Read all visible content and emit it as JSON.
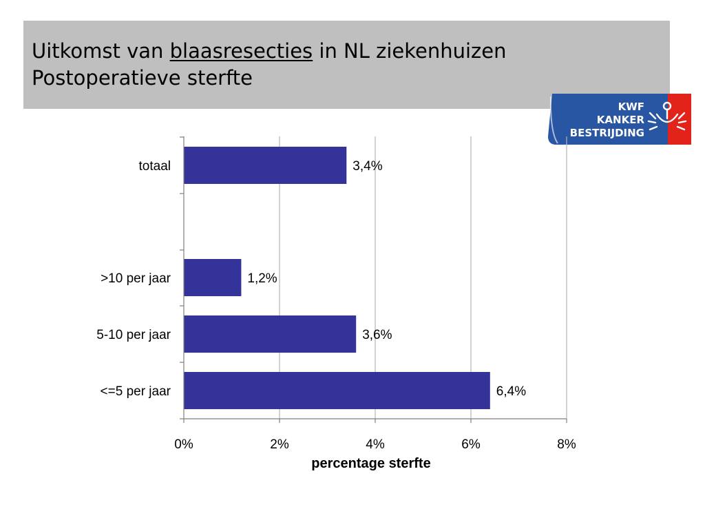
{
  "slide": {
    "title_line1_before": "Uitkomst van ",
    "title_line1_underlined": "blaasresecties",
    "title_line1_after": " in NL ziekenhuizen",
    "title_line2": "Postoperatieve sterfte"
  },
  "logo": {
    "line1": "KWF",
    "line2": "KANKER",
    "line3": "BESTRIJDING",
    "brand_blue": "#2956a3",
    "brand_red": "#e2231a"
  },
  "chart_data": {
    "type": "bar",
    "orientation": "horizontal",
    "categories": [
      "totaal",
      ">10 per jaar",
      "5-10 per jaar",
      "<=5 per jaar"
    ],
    "values": [
      3.4,
      1.2,
      3.6,
      6.4
    ],
    "data_labels": [
      "3,4%",
      "1,2%",
      "3,6%",
      "6,4%"
    ],
    "xlabel": "percentage sterfte",
    "ylabel": "",
    "xlim": [
      0,
      8
    ],
    "x_ticks": [
      0,
      2,
      4,
      6,
      8
    ],
    "x_tick_labels": [
      "0%",
      "2%",
      "4%",
      "6%",
      "8%"
    ],
    "grid": "vertical",
    "bar_color": "#333399"
  }
}
